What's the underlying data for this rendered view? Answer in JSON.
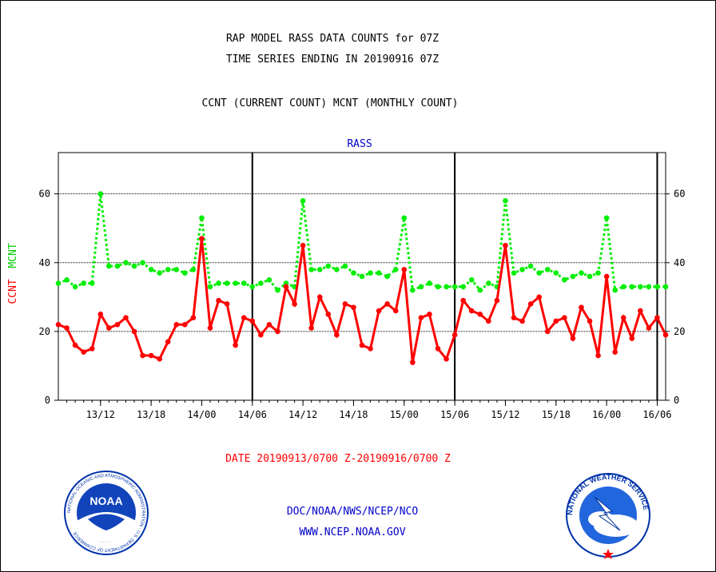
{
  "header": {
    "title_line1": "RAP MODEL RASS DATA COUNTS for 07Z",
    "title_line2": "TIME SERIES ENDING IN 20190916 07Z",
    "subtitle": "CCNT (CURRENT COUNT) MCNT (MONTHLY COUNT)"
  },
  "footer": {
    "date_range": "DATE 20190913/0700 Z-20190916/0700 Z",
    "org_line": "DOC/NOAA/NWS/NCEP/NCO",
    "url_line": "WWW.NCEP.NOAA.GOV"
  },
  "logos": {
    "noaa_text": "NOAA",
    "noaa_ring_text": "NATIONAL OCEANIC AND ATMOSPHERIC ADMINISTRATION · U.S. DEPARTMENT OF COMMERCE",
    "nws_ring_text": "NATIONAL WEATHER SERVICE"
  },
  "colors": {
    "ccnt": "#ff0000",
    "mcnt": "#00ee00",
    "blue_text": "#0000cc",
    "axes": "#000000"
  },
  "chart_data": {
    "type": "line",
    "title": "RASS",
    "ylabel_left_parts": [
      "CCNT",
      "MCNT"
    ],
    "ylim": [
      0,
      72
    ],
    "y_ticks": [
      0,
      20,
      40,
      60
    ],
    "gridlines": [
      20,
      40,
      60
    ],
    "x_hours_range": [
      7,
      79
    ],
    "x_ticks": [
      {
        "h": 12,
        "label": "13/12"
      },
      {
        "h": 18,
        "label": "13/18"
      },
      {
        "h": 24,
        "label": "14/00"
      },
      {
        "h": 30,
        "label": "14/06"
      },
      {
        "h": 36,
        "label": "14/12"
      },
      {
        "h": 42,
        "label": "14/18"
      },
      {
        "h": 48,
        "label": "15/00"
      },
      {
        "h": 54,
        "label": "15/06"
      },
      {
        "h": 60,
        "label": "15/12"
      },
      {
        "h": 66,
        "label": "15/18"
      },
      {
        "h": 72,
        "label": "16/00"
      },
      {
        "h": 78,
        "label": "16/06"
      }
    ],
    "day_boundaries_hours": [
      30,
      54,
      78
    ],
    "series": [
      {
        "name": "CCNT",
        "color": "#ff0000",
        "values": [
          22,
          21,
          16,
          14,
          15,
          25,
          21,
          22,
          24,
          20,
          13,
          13,
          12,
          17,
          22,
          22,
          24,
          47,
          21,
          29,
          28,
          16,
          24,
          23,
          19,
          22,
          20,
          33,
          28,
          45,
          21,
          30,
          25,
          19,
          28,
          27,
          16,
          15,
          26,
          28,
          26,
          38,
          11,
          24,
          25,
          15,
          12,
          19,
          29,
          26,
          25,
          23,
          29,
          45,
          24,
          23,
          28,
          30,
          20,
          23,
          24,
          18,
          27,
          23,
          13,
          36,
          14,
          24,
          18,
          26,
          21,
          24,
          19
        ]
      },
      {
        "name": "MCNT",
        "color": "#00ee00",
        "values": [
          34,
          35,
          33,
          34,
          34,
          60,
          39,
          39,
          40,
          39,
          40,
          38,
          37,
          38,
          38,
          37,
          38,
          53,
          33,
          34,
          34,
          34,
          34,
          33,
          34,
          35,
          32,
          34,
          33,
          58,
          38,
          38,
          39,
          38,
          39,
          37,
          36,
          37,
          37,
          36,
          38,
          53,
          32,
          33,
          34,
          33,
          33,
          33,
          33,
          35,
          32,
          34,
          33,
          58,
          37,
          38,
          39,
          37,
          38,
          37,
          35,
          36,
          37,
          36,
          37,
          53,
          32,
          33,
          33,
          33,
          33,
          33,
          33
        ]
      }
    ]
  }
}
